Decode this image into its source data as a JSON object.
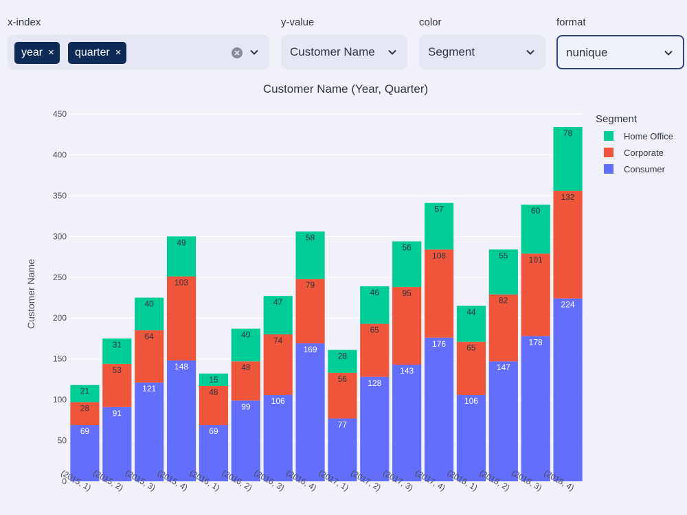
{
  "controls": {
    "x_index": {
      "label": "x-index",
      "tags": [
        {
          "label": "year"
        },
        {
          "label": "quarter"
        }
      ]
    },
    "y_value": {
      "label": "y-value",
      "value": "Customer Name"
    },
    "color": {
      "label": "color",
      "value": "Segment"
    },
    "format": {
      "label": "format",
      "value": "nunique"
    }
  },
  "icons": {
    "clear": "clear-icon",
    "chevron": "chevron-down-icon",
    "remove_tag": "close-icon"
  },
  "tag_close_glyph": "×",
  "chart_data": {
    "type": "bar",
    "stacked": true,
    "title": "Customer Name (Year, Quarter)",
    "xlabel": "",
    "ylabel": "Customer Name",
    "ylim": [
      0,
      450
    ],
    "yticks": [
      0,
      50,
      100,
      150,
      200,
      250,
      300,
      350,
      400,
      450
    ],
    "grid": true,
    "legend": {
      "title": "Segment",
      "position": "top-right"
    },
    "categories": [
      "(2015, 1)",
      "(2015, 2)",
      "(2015, 3)",
      "(2015, 4)",
      "(2016, 1)",
      "(2016, 2)",
      "(2016, 3)",
      "(2016, 4)",
      "(2017, 1)",
      "(2017, 2)",
      "(2017, 3)",
      "(2017, 4)",
      "(2018, 1)",
      "(2018, 2)",
      "(2018, 3)",
      "(2018, 4)"
    ],
    "series": [
      {
        "name": "Consumer",
        "color": "#636efa",
        "values": [
          69,
          91,
          121,
          148,
          69,
          99,
          106,
          169,
          77,
          128,
          143,
          176,
          106,
          147,
          178,
          224
        ]
      },
      {
        "name": "Corporate",
        "color": "#ef553b",
        "values": [
          28,
          53,
          64,
          103,
          48,
          48,
          74,
          79,
          56,
          65,
          95,
          108,
          65,
          82,
          101,
          132
        ]
      },
      {
        "name": "Home Office",
        "color": "#00cc96",
        "values": [
          21,
          31,
          40,
          49,
          15,
          40,
          47,
          58,
          28,
          46,
          56,
          57,
          44,
          55,
          60,
          78
        ]
      }
    ]
  }
}
